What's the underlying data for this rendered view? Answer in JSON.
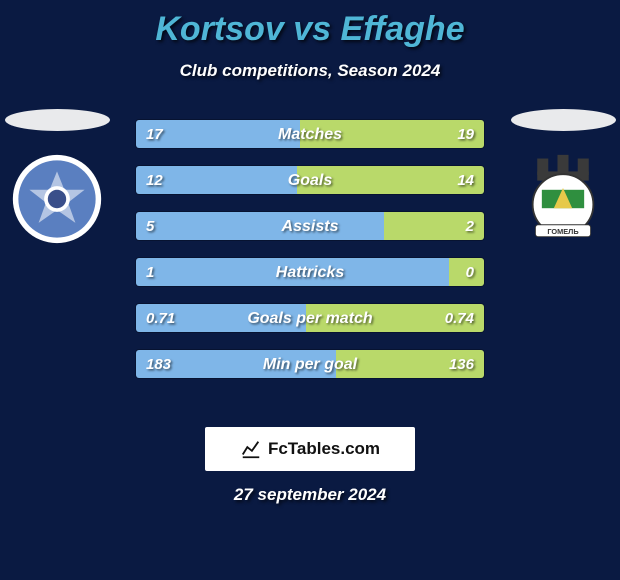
{
  "header": {
    "title": "Kortsov vs Effaghe",
    "title_color": "#4fb6d6",
    "subtitle": "Club competitions, Season 2024",
    "background_color": "#0a1a42"
  },
  "players": {
    "left": {
      "shadow_color": "#e9eaec"
    },
    "right": {
      "shadow_color": "#e9eaec"
    }
  },
  "bar_colors": {
    "left_color": "#7fb6e8",
    "right_color": "#b9d96a",
    "text_color": "#ffffff"
  },
  "stats": [
    {
      "label": "Matches",
      "left_val": "17",
      "right_val": "19",
      "left_pct": 47.2,
      "right_pct": 52.8
    },
    {
      "label": "Goals",
      "left_val": "12",
      "right_val": "14",
      "left_pct": 46.2,
      "right_pct": 53.8
    },
    {
      "label": "Assists",
      "left_val": "5",
      "right_val": "2",
      "left_pct": 71.4,
      "right_pct": 28.6
    },
    {
      "label": "Hattricks",
      "left_val": "1",
      "right_val": "0",
      "left_pct": 90.0,
      "right_pct": 10.0
    },
    {
      "label": "Goals per match",
      "left_val": "0.71",
      "right_val": "0.74",
      "left_pct": 48.9,
      "right_pct": 51.1
    },
    {
      "label": "Min per goal",
      "left_val": "183",
      "right_val": "136",
      "left_pct": 57.4,
      "right_pct": 42.6
    }
  ],
  "footer": {
    "brand": "FcTables.com",
    "date": "27 september 2024"
  },
  "crest_left": {
    "outer_fill": "#ffffff",
    "inner_fill": "#5a7fc0",
    "accent": "#3a4f8a"
  },
  "crest_right": {
    "castle_fill": "#3a3a3a",
    "circle_fill": "#ffffff",
    "green": "#2f8f3f",
    "yellow": "#e6c94a",
    "banner_fill": "#ffffff"
  }
}
